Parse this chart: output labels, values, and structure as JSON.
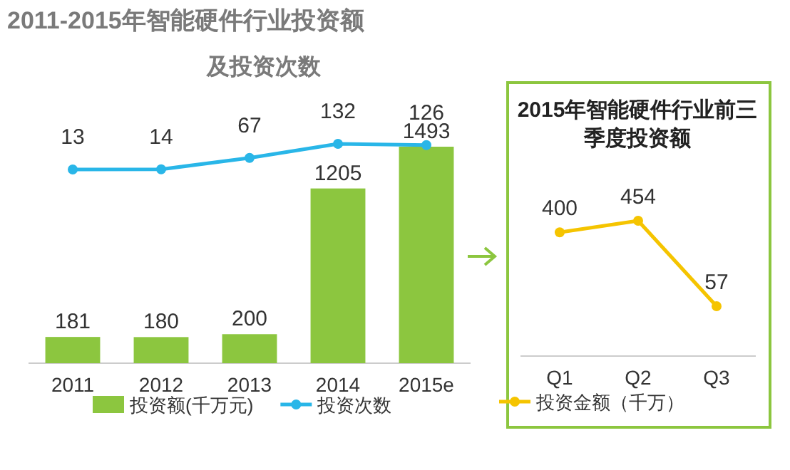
{
  "chart_data": [
    {
      "type": "bar",
      "title": "2011-2015年智能硬件行业投资额",
      "subtitle": "及投资次数",
      "categories": [
        "2011",
        "2012",
        "2013",
        "2014",
        "2015e"
      ],
      "series": [
        {
          "name": "投资额(千万元)",
          "type": "bar",
          "color": "#8cc63f",
          "values": [
            181,
            180,
            200,
            1205,
            1493
          ]
        },
        {
          "name": "投资次数",
          "type": "line",
          "axis": "y2",
          "color": "#29b6e8",
          "marker": "circle",
          "values": [
            13,
            14,
            67,
            132,
            126
          ]
        }
      ],
      "data_labels": true,
      "legend": "bottom"
    },
    {
      "type": "line",
      "title": "2015年智能硬件行业前三季度投资额",
      "categories": [
        "Q1",
        "Q2",
        "Q3"
      ],
      "series": [
        {
          "name": "投资金额（千万）",
          "color": "#f5c400",
          "marker": "circle",
          "values": [
            400,
            454,
            57
          ]
        }
      ],
      "data_labels": true,
      "legend": "bottom"
    }
  ]
}
